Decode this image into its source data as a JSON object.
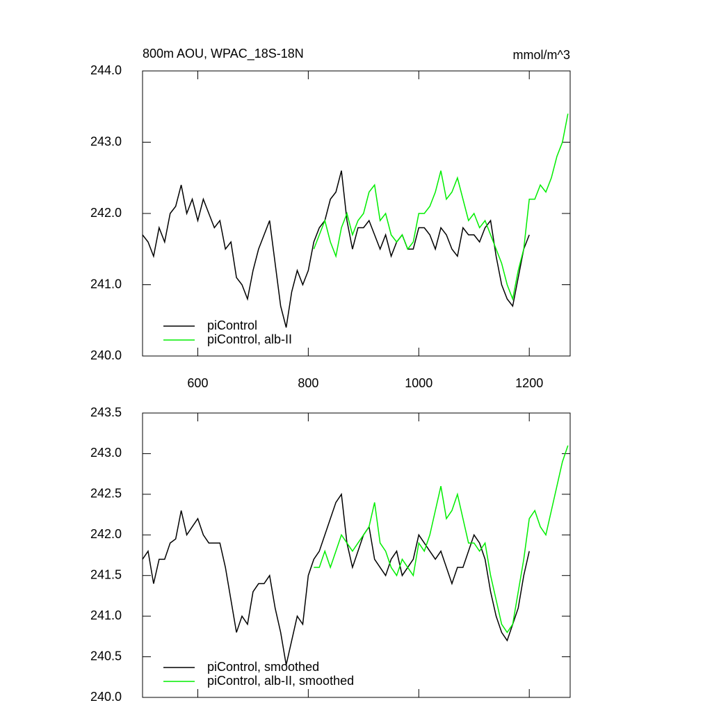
{
  "chart_data": [
    {
      "type": "line",
      "title": "800m AOU, WPAC_18S-18N",
      "subtitle": "mmol/m^3",
      "xlim": [
        500,
        1274
      ],
      "xticks": [
        600,
        800,
        1000,
        1200
      ],
      "ylim": [
        240,
        244
      ],
      "yticks": [
        {
          "value": 240,
          "label": "240.0"
        },
        {
          "value": 241,
          "label": "241.0"
        },
        {
          "value": 242,
          "label": "242.0"
        },
        {
          "value": 243,
          "label": "243.0"
        },
        {
          "value": 244,
          "label": "244.0"
        }
      ],
      "legend": "lower left",
      "series": [
        {
          "name": "piControl",
          "color": "#000000",
          "x": [
            500,
            510,
            520,
            530,
            540,
            550,
            560,
            570,
            580,
            590,
            600,
            610,
            620,
            630,
            640,
            650,
            660,
            670,
            680,
            690,
            700,
            710,
            720,
            730,
            740,
            750,
            760,
            770,
            780,
            790,
            800,
            810,
            820,
            830,
            840,
            850,
            860,
            870,
            880,
            890,
            900,
            910,
            920,
            930,
            940,
            950,
            960,
            970,
            980,
            990,
            1000,
            1010,
            1020,
            1030,
            1040,
            1050,
            1060,
            1070,
            1080,
            1090,
            1100,
            1110,
            1120,
            1130,
            1140,
            1150,
            1160,
            1170,
            1180,
            1190,
            1200
          ],
          "values": [
            241.7,
            241.6,
            241.4,
            241.8,
            241.6,
            242.0,
            242.1,
            242.4,
            242.0,
            242.2,
            241.9,
            242.2,
            242.0,
            241.8,
            241.9,
            241.5,
            241.6,
            241.1,
            241.0,
            240.8,
            241.2,
            241.5,
            241.7,
            241.9,
            241.3,
            240.7,
            240.4,
            240.9,
            241.2,
            241.0,
            241.2,
            241.6,
            241.8,
            241.9,
            242.2,
            242.3,
            242.6,
            241.9,
            241.5,
            241.8,
            241.8,
            241.9,
            241.7,
            241.5,
            241.7,
            241.4,
            241.6,
            241.7,
            241.5,
            241.5,
            241.8,
            241.8,
            241.7,
            241.5,
            241.8,
            241.7,
            241.5,
            241.4,
            241.8,
            241.7,
            241.7,
            241.6,
            241.8,
            241.9,
            241.4,
            241.0,
            240.8,
            240.7,
            241.1,
            241.5,
            241.7
          ]
        },
        {
          "name": "piControl, alb-II",
          "color": "#00ee00",
          "x": [
            810,
            820,
            830,
            840,
            850,
            860,
            870,
            880,
            890,
            900,
            910,
            920,
            930,
            940,
            950,
            960,
            970,
            980,
            990,
            1000,
            1010,
            1020,
            1030,
            1040,
            1050,
            1060,
            1070,
            1080,
            1090,
            1100,
            1110,
            1120,
            1130,
            1140,
            1150,
            1160,
            1170,
            1180,
            1190,
            1200,
            1210,
            1220,
            1230,
            1240,
            1250,
            1260,
            1270
          ],
          "values": [
            241.5,
            241.7,
            241.9,
            241.6,
            241.4,
            241.8,
            242.0,
            241.7,
            241.9,
            242.0,
            242.3,
            242.4,
            241.9,
            242.0,
            241.7,
            241.6,
            241.7,
            241.5,
            241.6,
            242.0,
            242.0,
            242.1,
            242.3,
            242.6,
            242.2,
            242.3,
            242.5,
            242.2,
            241.9,
            242.0,
            241.8,
            241.9,
            241.7,
            241.5,
            241.3,
            241.0,
            240.8,
            241.2,
            241.5,
            242.2,
            242.2,
            242.4,
            242.3,
            242.5,
            242.8,
            243.0,
            243.4
          ]
        }
      ]
    },
    {
      "type": "line",
      "xlim": [
        500,
        1274
      ],
      "xticks": [
        600,
        800,
        1000,
        1200
      ],
      "show_xtick_labels": false,
      "ylim": [
        240,
        243.5
      ],
      "yticks": [
        {
          "value": 240,
          "label": "240.0"
        },
        240.5,
        {
          "value": 241,
          "label": "241.0"
        },
        241.5,
        {
          "value": 242,
          "label": "242.0"
        },
        242.5,
        {
          "value": 243,
          "label": "243.0"
        },
        243.5
      ],
      "legend": "lower left",
      "series": [
        {
          "name": "piControl, smoothed",
          "color": "#000000",
          "x": [
            500,
            510,
            520,
            530,
            540,
            550,
            560,
            570,
            580,
            590,
            600,
            610,
            620,
            630,
            640,
            650,
            660,
            670,
            680,
            690,
            700,
            710,
            720,
            730,
            740,
            750,
            760,
            770,
            780,
            790,
            800,
            810,
            820,
            830,
            840,
            850,
            860,
            870,
            880,
            890,
            900,
            910,
            920,
            930,
            940,
            950,
            960,
            970,
            980,
            990,
            1000,
            1010,
            1020,
            1030,
            1040,
            1050,
            1060,
            1070,
            1080,
            1090,
            1100,
            1110,
            1120,
            1130,
            1140,
            1150,
            1160,
            1170,
            1180,
            1190,
            1200
          ],
          "values": [
            241.7,
            241.8,
            241.4,
            241.7,
            241.7,
            241.9,
            241.95,
            242.3,
            242.0,
            242.1,
            242.2,
            242.0,
            241.9,
            241.9,
            241.9,
            241.6,
            241.2,
            240.8,
            241.0,
            240.9,
            241.3,
            241.4,
            241.4,
            241.5,
            241.1,
            240.8,
            240.4,
            240.7,
            241.0,
            240.9,
            241.5,
            241.7,
            241.8,
            242.0,
            242.2,
            242.4,
            242.5,
            241.9,
            241.6,
            241.8,
            242.0,
            242.1,
            241.7,
            241.6,
            241.5,
            241.7,
            241.8,
            241.5,
            241.6,
            241.7,
            242.0,
            241.9,
            241.8,
            241.7,
            241.8,
            241.6,
            241.4,
            241.6,
            241.6,
            241.8,
            242.0,
            241.9,
            241.7,
            241.3,
            241.0,
            240.8,
            240.7,
            240.9,
            241.1,
            241.5,
            241.8
          ]
        },
        {
          "name": "piControl, alb-II, smoothed",
          "color": "#00ee00",
          "x": [
            810,
            820,
            830,
            840,
            850,
            860,
            870,
            880,
            890,
            900,
            910,
            920,
            930,
            940,
            950,
            960,
            970,
            980,
            990,
            1000,
            1010,
            1020,
            1030,
            1040,
            1050,
            1060,
            1070,
            1080,
            1090,
            1100,
            1110,
            1120,
            1130,
            1140,
            1150,
            1160,
            1170,
            1180,
            1190,
            1200,
            1210,
            1220,
            1230,
            1240,
            1250,
            1260,
            1270
          ],
          "values": [
            241.6,
            241.6,
            241.8,
            241.6,
            241.8,
            242.0,
            241.9,
            241.8,
            241.9,
            242.0,
            242.1,
            242.4,
            241.9,
            241.8,
            241.6,
            241.5,
            241.7,
            241.6,
            241.5,
            241.9,
            241.8,
            242.0,
            242.3,
            242.6,
            242.2,
            242.3,
            242.5,
            242.2,
            241.9,
            241.9,
            241.8,
            241.9,
            241.5,
            241.2,
            240.9,
            240.8,
            240.9,
            241.3,
            241.7,
            242.2,
            242.3,
            242.1,
            242.0,
            242.3,
            242.6,
            242.9,
            243.1
          ]
        }
      ]
    }
  ]
}
